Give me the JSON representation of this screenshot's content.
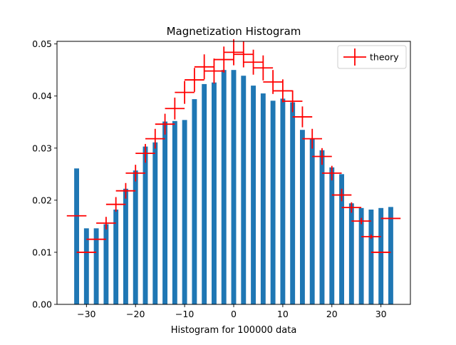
{
  "chart_data": {
    "type": "bar",
    "title": "Magnetization Histogram",
    "xlabel": "Histogram for 100000 data",
    "ylabel": "",
    "xlim": [
      -36,
      36
    ],
    "ylim": [
      0,
      0.0505
    ],
    "x_ticks": [
      -30,
      -20,
      -10,
      0,
      10,
      20,
      30
    ],
    "y_ticks": [
      0.0,
      0.01,
      0.02,
      0.03,
      0.04,
      0.05
    ],
    "x_tick_labels": [
      "−30",
      "−20",
      "−10",
      "0",
      "10",
      "20",
      "30"
    ],
    "y_tick_labels": [
      "0.00",
      "0.01",
      "0.02",
      "0.03",
      "0.04",
      "0.05"
    ],
    "bar_width": 1.0,
    "bar_color": "#1f77b4",
    "bars": {
      "x": [
        -32,
        -30,
        -28,
        -26,
        -24,
        -22,
        -20,
        -18,
        -16,
        -14,
        -12,
        -10,
        -8,
        -6,
        -4,
        -2,
        0,
        2,
        4,
        6,
        8,
        10,
        12,
        14,
        16,
        18,
        20,
        22,
        24,
        26,
        28,
        30,
        32
      ],
      "values": [
        0.0261,
        0.0146,
        0.0146,
        0.0154,
        0.0182,
        0.0222,
        0.0257,
        0.0303,
        0.0311,
        0.0351,
        0.0352,
        0.0354,
        0.0394,
        0.0423,
        0.0426,
        0.045,
        0.045,
        0.0439,
        0.042,
        0.0405,
        0.0391,
        0.0395,
        0.0388,
        0.0335,
        0.0317,
        0.0296,
        0.0263,
        0.025,
        0.0194,
        0.0185,
        0.0182,
        0.0185,
        0.0187
      ]
    },
    "series": [
      {
        "name": "theory",
        "color": "#ff0000",
        "x": [
          -32,
          -30,
          -28,
          -26,
          -24,
          -22,
          -20,
          -18,
          -16,
          -14,
          -12,
          -10,
          -8,
          -6,
          -4,
          -2,
          0,
          2,
          4,
          6,
          8,
          10,
          12,
          14,
          16,
          18,
          20,
          22,
          24,
          26,
          28,
          30,
          32
        ],
        "values": [
          0.017,
          0.01,
          0.0125,
          0.0156,
          0.0192,
          0.0218,
          0.0252,
          0.029,
          0.0318,
          0.0346,
          0.0376,
          0.0407,
          0.0431,
          0.0456,
          0.0448,
          0.047,
          0.0484,
          0.048,
          0.0465,
          0.0454,
          0.0427,
          0.041,
          0.039,
          0.036,
          0.0318,
          0.0284,
          0.0252,
          0.021,
          0.0186,
          0.016,
          0.013,
          0.01,
          0.0165
        ],
        "xerr": 2.0,
        "yerr": [
          0.0,
          0.0,
          0.0,
          0.0012,
          0.0014,
          0.0015,
          0.0016,
          0.0018,
          0.0019,
          0.002,
          0.0021,
          0.0022,
          0.0023,
          0.0024,
          0.0024,
          0.0025,
          0.0025,
          0.0025,
          0.0024,
          0.0024,
          0.0023,
          0.0022,
          0.0021,
          0.002,
          0.0019,
          0.0016,
          0.0014,
          0.0012,
          0.001,
          0.0006,
          0.0004,
          0.0,
          0.0
        ]
      }
    ],
    "legend": {
      "placement": "top-right",
      "entries": [
        "theory"
      ]
    },
    "grid": false
  }
}
